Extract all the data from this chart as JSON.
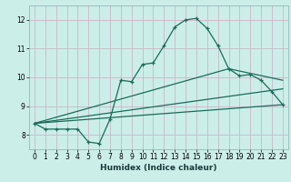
{
  "xlabel": "Humidex (Indice chaleur)",
  "bg_color": "#cceee8",
  "grid_color": "#b8ddd8",
  "line_color": "#1a6b5a",
  "xlim": [
    -0.5,
    23.5
  ],
  "ylim": [
    7.5,
    12.5
  ],
  "xticks": [
    0,
    1,
    2,
    3,
    4,
    5,
    6,
    7,
    8,
    9,
    10,
    11,
    12,
    13,
    14,
    15,
    16,
    17,
    18,
    19,
    20,
    21,
    22,
    23
  ],
  "yticks": [
    8,
    9,
    10,
    11,
    12
  ],
  "line1_x": [
    0,
    1,
    2,
    3,
    4,
    5,
    6,
    7,
    8,
    9,
    10,
    11,
    12,
    13,
    14,
    15,
    16,
    17,
    18,
    19,
    20,
    21,
    22,
    23
  ],
  "line1_y": [
    8.4,
    8.2,
    8.2,
    8.2,
    8.2,
    7.75,
    7.7,
    8.55,
    9.9,
    9.85,
    10.45,
    10.5,
    11.1,
    11.75,
    12.0,
    12.05,
    11.7,
    11.1,
    10.3,
    10.05,
    10.1,
    9.9,
    9.5,
    9.05
  ],
  "line2_x": [
    0,
    23
  ],
  "line2_y": [
    8.4,
    9.05
  ],
  "line3_x": [
    0,
    18,
    23
  ],
  "line3_y": [
    8.4,
    10.3,
    9.9
  ],
  "line4_x": [
    0,
    23
  ],
  "line4_y": [
    8.4,
    9.6
  ]
}
